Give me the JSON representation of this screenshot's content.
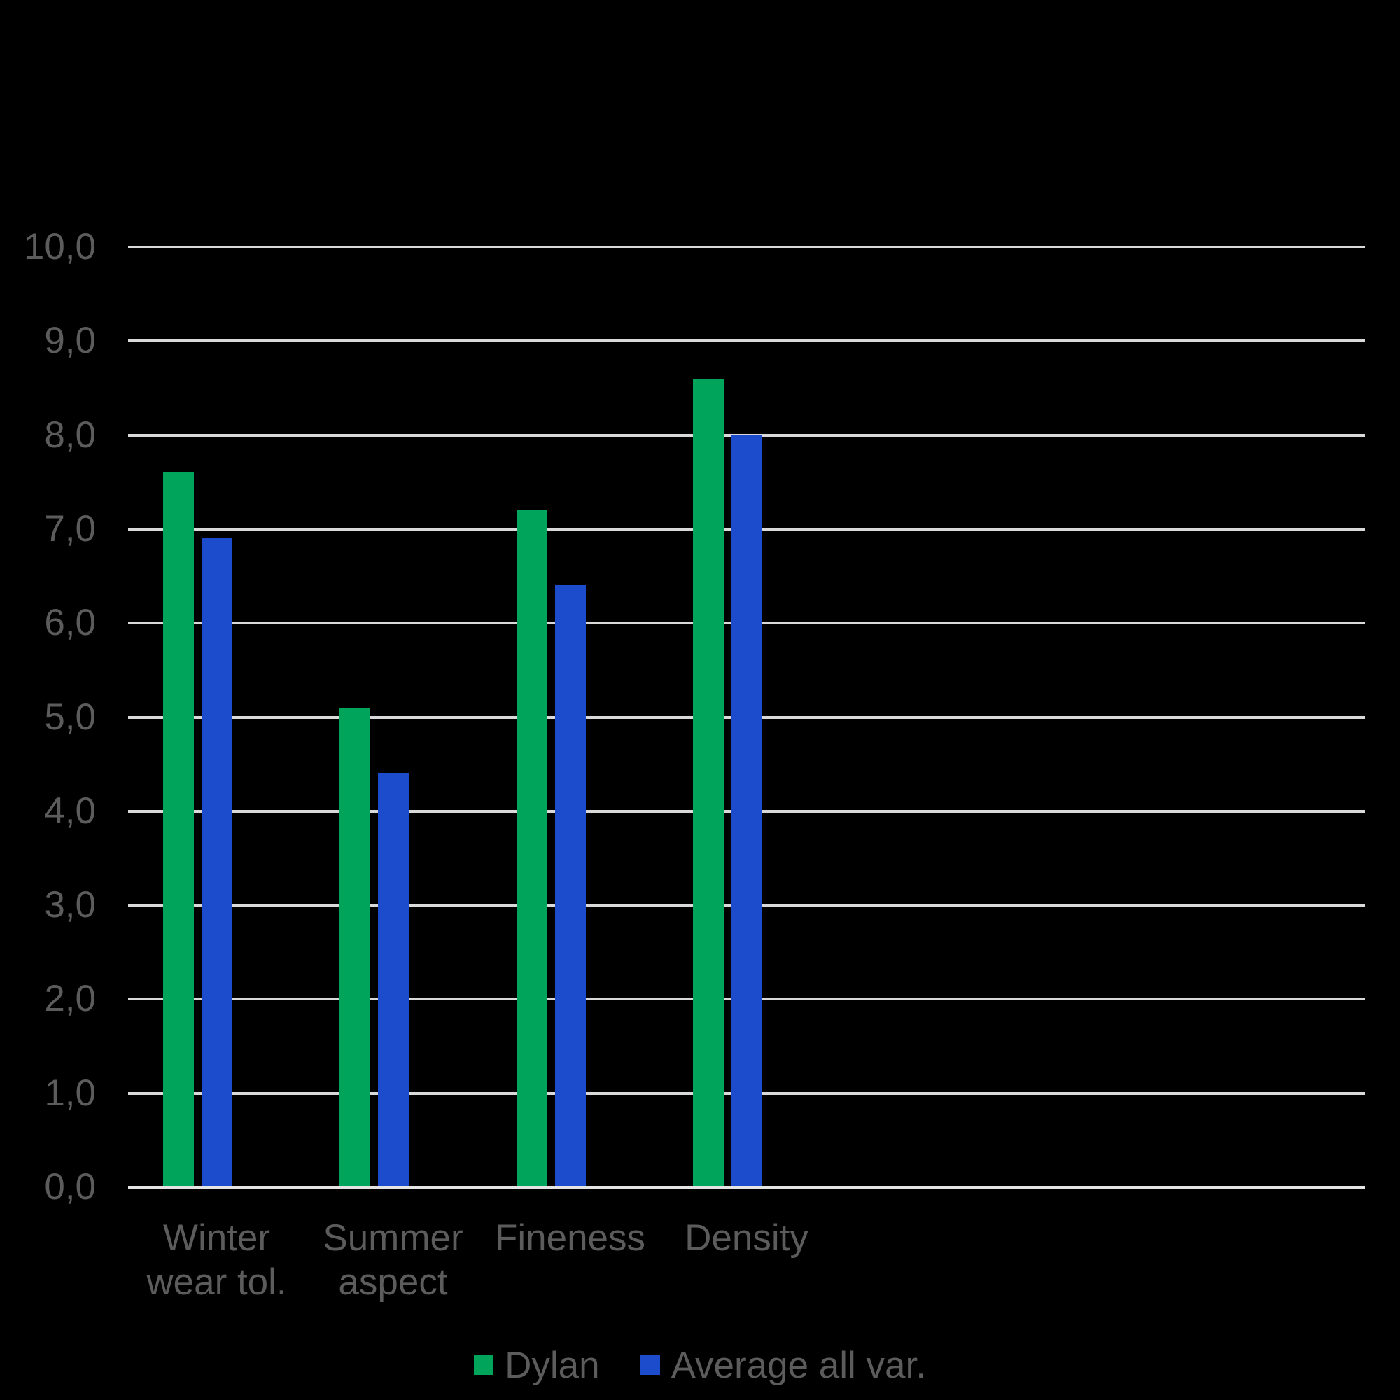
{
  "chart": {
    "background_color": "#000000",
    "text_color": "#5C5C5C",
    "gridline_color": "#D9D9D9",
    "axis_line_color": "#E4E4E4"
  },
  "chart_data": {
    "type": "bar",
    "title": "",
    "xlabel": "",
    "ylabel": "",
    "categories": [
      "Winter wear tol.",
      "Summer aspect",
      "Fineness",
      "Density"
    ],
    "series": [
      {
        "name": "Dylan",
        "color": "#00A45A",
        "values": [
          7.6,
          5.1,
          7.2,
          8.6
        ]
      },
      {
        "name": "Average all var.",
        "color": "#1C4BCB",
        "values": [
          6.9,
          4.4,
          6.4,
          8.0
        ]
      }
    ],
    "ylim": [
      0,
      10
    ],
    "ytick_step": 1.0,
    "ytick_labels": [
      "0,0",
      "1,0",
      "2,0",
      "3,0",
      "4,0",
      "5,0",
      "6,0",
      "7,0",
      "8,0",
      "9,0",
      "10,0"
    ],
    "decimal_separator": ",",
    "grid": true,
    "gridlines_horizontal": true,
    "legend_position": "bottom-center",
    "x_slots_total": 7,
    "x_slots_used": 4
  }
}
